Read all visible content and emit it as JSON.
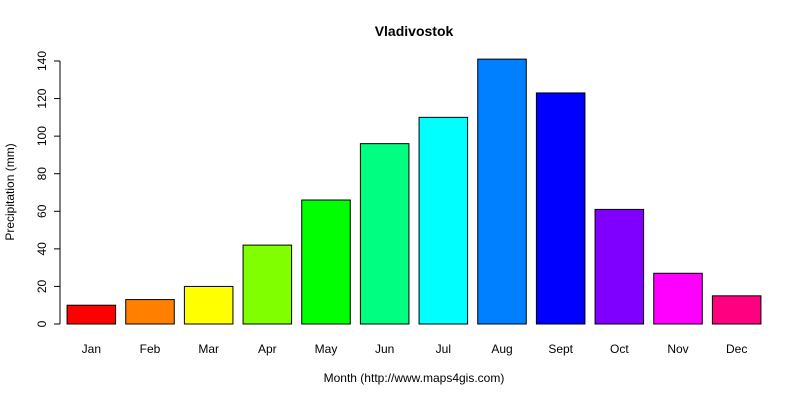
{
  "chart_data": {
    "type": "bar",
    "title": "Vladivostok",
    "xlabel": "Month (http://www.maps4gis.com)",
    "ylabel": "Precipitation (mm)",
    "ylim": [
      0,
      140
    ],
    "yticks": [
      0,
      20,
      40,
      60,
      80,
      100,
      120,
      140
    ],
    "grid": false,
    "categories": [
      "Jan",
      "Feb",
      "Mar",
      "Apr",
      "May",
      "Jun",
      "Jul",
      "Aug",
      "Sept",
      "Oct",
      "Nov",
      "Dec"
    ],
    "values": [
      10,
      13,
      20,
      42,
      66,
      96,
      110,
      141,
      123,
      61,
      27,
      15
    ],
    "colors": [
      "#ff0000",
      "#ff8000",
      "#ffff00",
      "#80ff00",
      "#00ff00",
      "#00ff80",
      "#00ffff",
      "#0080ff",
      "#0000ff",
      "#8000ff",
      "#ff00ff",
      "#ff0080"
    ],
    "bar_edge_color": "#000000"
  }
}
